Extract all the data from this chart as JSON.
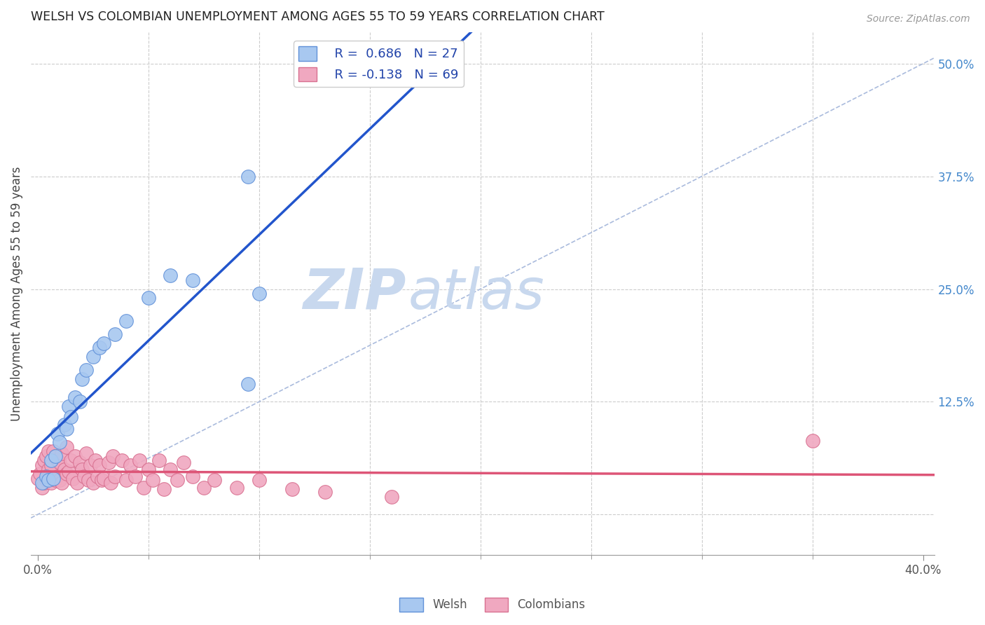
{
  "title": "WELSH VS COLOMBIAN UNEMPLOYMENT AMONG AGES 55 TO 59 YEARS CORRELATION CHART",
  "source": "Source: ZipAtlas.com",
  "ylabel": "Unemployment Among Ages 55 to 59 years",
  "welsh_color": "#a8c8f0",
  "colombian_color": "#f0a8c0",
  "welsh_edge_color": "#6090d8",
  "colombian_edge_color": "#d87090",
  "regression_welsh_color": "#2255cc",
  "regression_colombian_color": "#dd5577",
  "diagonal_color": "#aabbdd",
  "legend_r_welsh": "R =  0.686",
  "legend_n_welsh": "N = 27",
  "legend_r_colombian": "R = -0.138",
  "legend_n_colombian": "N = 69",
  "welsh_x": [
    0.002,
    0.004,
    0.005,
    0.006,
    0.007,
    0.008,
    0.009,
    0.01,
    0.012,
    0.013,
    0.014,
    0.015,
    0.017,
    0.019,
    0.02,
    0.022,
    0.025,
    0.028,
    0.03,
    0.035,
    0.04,
    0.05,
    0.06,
    0.07,
    0.095,
    0.1,
    0.095
  ],
  "welsh_y": [
    0.035,
    0.042,
    0.038,
    0.06,
    0.04,
    0.065,
    0.09,
    0.08,
    0.1,
    0.095,
    0.12,
    0.108,
    0.13,
    0.125,
    0.15,
    0.16,
    0.175,
    0.185,
    0.19,
    0.2,
    0.215,
    0.24,
    0.265,
    0.26,
    0.145,
    0.245,
    0.375
  ],
  "colombian_x": [
    0.0,
    0.001,
    0.002,
    0.002,
    0.003,
    0.003,
    0.004,
    0.004,
    0.005,
    0.005,
    0.005,
    0.006,
    0.006,
    0.007,
    0.007,
    0.008,
    0.008,
    0.009,
    0.009,
    0.01,
    0.01,
    0.011,
    0.011,
    0.012,
    0.013,
    0.013,
    0.014,
    0.015,
    0.016,
    0.017,
    0.018,
    0.019,
    0.02,
    0.021,
    0.022,
    0.023,
    0.024,
    0.025,
    0.026,
    0.027,
    0.028,
    0.029,
    0.03,
    0.032,
    0.033,
    0.034,
    0.035,
    0.038,
    0.04,
    0.042,
    0.044,
    0.046,
    0.048,
    0.05,
    0.052,
    0.055,
    0.057,
    0.06,
    0.063,
    0.066,
    0.07,
    0.075,
    0.08,
    0.09,
    0.1,
    0.115,
    0.13,
    0.16,
    0.35
  ],
  "colombian_y": [
    0.04,
    0.045,
    0.03,
    0.055,
    0.035,
    0.06,
    0.038,
    0.065,
    0.042,
    0.05,
    0.07,
    0.035,
    0.055,
    0.04,
    0.07,
    0.038,
    0.065,
    0.042,
    0.06,
    0.038,
    0.058,
    0.035,
    0.068,
    0.05,
    0.045,
    0.075,
    0.048,
    0.06,
    0.04,
    0.065,
    0.035,
    0.058,
    0.05,
    0.042,
    0.068,
    0.038,
    0.055,
    0.035,
    0.06,
    0.042,
    0.055,
    0.038,
    0.04,
    0.058,
    0.035,
    0.065,
    0.042,
    0.06,
    0.038,
    0.055,
    0.042,
    0.06,
    0.03,
    0.05,
    0.038,
    0.06,
    0.028,
    0.05,
    0.038,
    0.058,
    0.042,
    0.03,
    0.038,
    0.03,
    0.038,
    0.028,
    0.025,
    0.02,
    0.082
  ],
  "xlim": [
    -0.003,
    0.405
  ],
  "ylim": [
    -0.045,
    0.535
  ],
  "right_ytick_positions": [
    0.0,
    0.125,
    0.25,
    0.375,
    0.5
  ],
  "right_yticklabels": [
    "",
    "12.5%",
    "25.0%",
    "37.5%",
    "50.0%"
  ]
}
